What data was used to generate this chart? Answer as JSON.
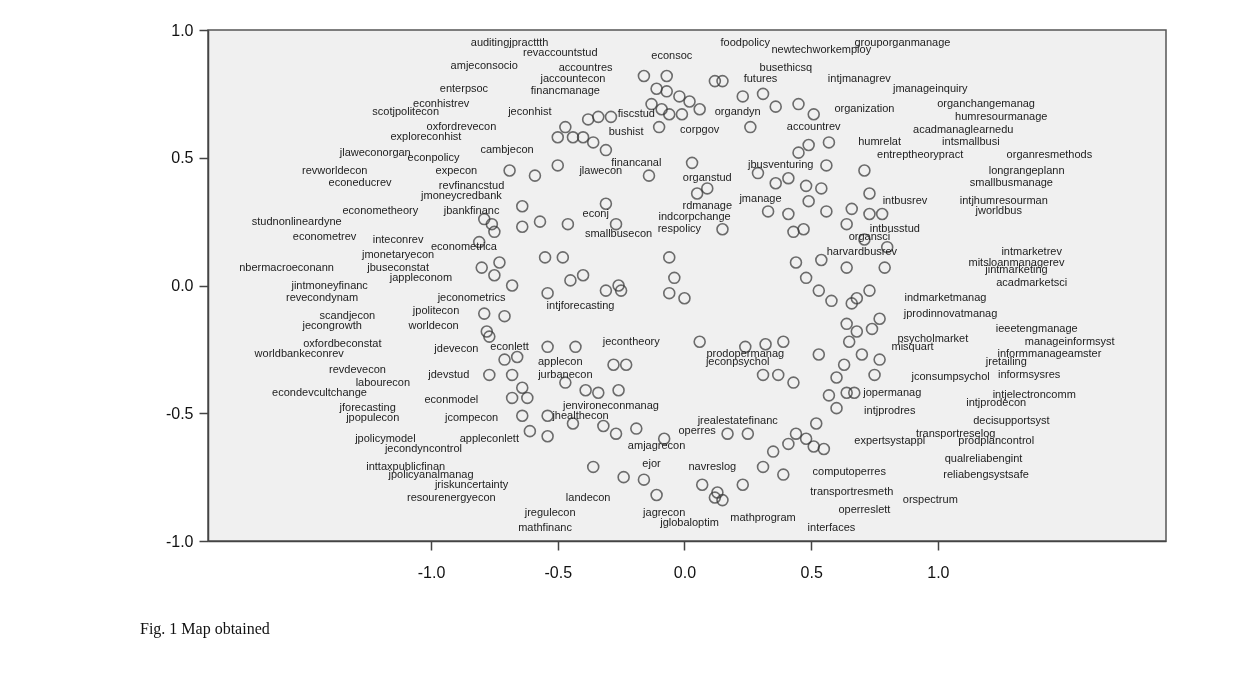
{
  "chart_data": {
    "type": "scatter",
    "series": [
      {
        "color": "#333333",
        "x": [
          -0.16,
          -0.07,
          0.12,
          0.15,
          -0.11,
          -0.07,
          -0.02,
          0.02,
          0.06,
          0.23,
          0.31,
          -0.13,
          -0.09,
          -0.06,
          -0.01,
          0.36,
          0.45,
          0.51,
          -0.34,
          -0.29,
          -0.38,
          -0.47,
          -0.5,
          -0.44,
          -0.4,
          -0.1,
          0.26,
          0.57,
          0.49,
          -0.36,
          -0.31,
          -0.5,
          -0.59,
          -0.14,
          0.03,
          0.29,
          0.45,
          0.56,
          0.36,
          0.41,
          0.48,
          0.54,
          -0.31,
          0.05,
          0.09,
          -0.64,
          -0.57,
          -0.64,
          0.33,
          0.41,
          0.49,
          0.56,
          -0.46,
          -0.27,
          0.15,
          0.43,
          0.47,
          -0.55,
          -0.48,
          -0.4,
          -0.45,
          -0.26,
          -0.06,
          -0.04,
          0.48,
          0.44,
          0.54,
          -0.69,
          -0.79,
          -0.76,
          -0.75,
          -0.8,
          -0.73,
          -0.75,
          -0.68,
          -0.81,
          0.71,
          0.73,
          0.66,
          0.73,
          0.78,
          0.64,
          0.71,
          0.8,
          0.64,
          0.79,
          -0.79,
          -0.71,
          -0.78,
          -0.77,
          -0.71,
          -0.66,
          -0.77,
          -0.68,
          -0.68,
          -0.54,
          -0.31,
          -0.25,
          -0.06,
          0.0,
          0.53,
          0.58,
          -0.54,
          -0.43,
          -0.28,
          -0.23,
          0.06,
          0.24,
          0.32,
          0.39,
          0.53,
          -0.47,
          -0.64,
          -0.62,
          -0.39,
          -0.34,
          -0.26,
          0.31,
          0.37,
          0.43,
          0.6,
          0.57,
          0.6,
          -0.64,
          -0.54,
          -0.44,
          -0.32,
          -0.27,
          -0.19,
          -0.61,
          -0.54,
          -0.08,
          0.17,
          0.25,
          0.44,
          0.52,
          0.48,
          0.55,
          0.51,
          0.41,
          -0.36,
          -0.24,
          -0.16,
          0.07,
          0.13,
          0.23,
          0.12,
          0.15,
          -0.11,
          0.31,
          0.39,
          0.35,
          0.73,
          0.68,
          0.66,
          0.77,
          0.74,
          0.64,
          0.68,
          0.65,
          0.7,
          0.77,
          0.63,
          0.75,
          0.64,
          0.67
        ],
        "values": [
          0.82,
          0.82,
          0.8,
          0.8,
          0.77,
          0.76,
          0.74,
          0.72,
          0.69,
          0.74,
          0.75,
          0.71,
          0.69,
          0.67,
          0.67,
          0.7,
          0.71,
          0.67,
          0.66,
          0.66,
          0.65,
          0.62,
          0.58,
          0.58,
          0.58,
          0.62,
          0.62,
          0.56,
          0.55,
          0.56,
          0.53,
          0.47,
          0.43,
          0.43,
          0.48,
          0.44,
          0.52,
          0.47,
          0.4,
          0.42,
          0.39,
          0.38,
          0.32,
          0.36,
          0.38,
          0.31,
          0.25,
          0.23,
          0.29,
          0.28,
          0.33,
          0.29,
          0.24,
          0.24,
          0.22,
          0.21,
          0.22,
          0.11,
          0.11,
          0.04,
          0.02,
          0.0,
          0.11,
          0.03,
          0.03,
          0.09,
          0.1,
          0.45,
          0.26,
          0.24,
          0.21,
          0.07,
          0.09,
          0.04,
          0.0,
          0.17,
          0.45,
          0.36,
          0.3,
          0.28,
          0.28,
          0.24,
          0.18,
          0.15,
          0.07,
          0.07,
          -0.11,
          -0.12,
          -0.18,
          -0.2,
          -0.29,
          -0.28,
          -0.35,
          -0.35,
          -0.44,
          -0.03,
          -0.02,
          -0.02,
          -0.03,
          -0.05,
          -0.02,
          -0.06,
          -0.24,
          -0.24,
          -0.31,
          -0.31,
          -0.22,
          -0.24,
          -0.23,
          -0.22,
          -0.27,
          -0.38,
          -0.4,
          -0.44,
          -0.41,
          -0.42,
          -0.41,
          -0.35,
          -0.35,
          -0.38,
          -0.36,
          -0.43,
          -0.48,
          -0.51,
          -0.51,
          -0.54,
          -0.55,
          -0.58,
          -0.56,
          -0.57,
          -0.59,
          -0.6,
          -0.58,
          -0.58,
          -0.58,
          -0.54,
          -0.6,
          -0.64,
          -0.63,
          -0.62,
          -0.71,
          -0.75,
          -0.76,
          -0.78,
          -0.81,
          -0.78,
          -0.83,
          -0.84,
          -0.82,
          -0.71,
          -0.74,
          -0.65,
          -0.02,
          -0.05,
          -0.07,
          -0.13,
          -0.17,
          -0.15,
          -0.18,
          -0.22,
          -0.27,
          -0.29,
          -0.31,
          -0.35,
          -0.42,
          -0.42
        ]
      }
    ],
    "marker": "circle",
    "xlim": [
      -1.88,
      1.9
    ],
    "ylim": [
      -1.0,
      1.0
    ],
    "xticks": [
      {
        "value": -1.0,
        "label": "-1.0"
      },
      {
        "value": -0.5,
        "label": "-0.5"
      },
      {
        "value": 0.0,
        "label": "0.0"
      },
      {
        "value": 0.5,
        "label": "0.5"
      },
      {
        "value": 1.0,
        "label": "1.0"
      }
    ],
    "yticks": [
      {
        "value": -1.0,
        "label": "-1.0"
      },
      {
        "value": -0.5,
        "label": "-0.5"
      },
      {
        "value": 0.0,
        "label": "0.0"
      },
      {
        "value": 0.5,
        "label": "0.5"
      },
      {
        "value": 1.0,
        "label": "1.0"
      }
    ],
    "annotations": [
      "auditingjpracttth",
      "revaccountstud",
      "econsoc",
      "foodpolicy",
      "newtechworkemploy",
      "grouporganmanage",
      "amjeconsocio",
      "accountres",
      "busethicsq",
      "jaccountecon",
      "futures",
      "intjmanagrev",
      "enterpsoc",
      "financmanage",
      "jmanageinquiry",
      "econhistrev",
      "scotjpolitecon",
      "jeconhist",
      "fiscstud",
      "organdyn",
      "organization",
      "organchangemanag",
      "humresourmanage",
      "oxfordrevecon",
      "exploreconhist",
      "bushist",
      "corpgov",
      "accountrev",
      "acadmanaglearnedu",
      "humrelat",
      "intsmallbusi",
      "jlaweconorgan",
      "cambjecon",
      "econpolicy",
      "financanal",
      "jbusventuring",
      "entreptheorypract",
      "organresmethods",
      "revworldecon",
      "expecon",
      "jlawecon",
      "organstud",
      "longrangeplann",
      "smallbusmanage",
      "econeducrev",
      "revfinancstud",
      "jmoneycredbank",
      "jmanage",
      "intbusrev",
      "intjhumresourman",
      "jworldbus",
      "econometheory",
      "jbankfinanc",
      "econj",
      "rdmanage",
      "indcorpchange",
      "studnonlineardyne",
      "intbusstud",
      "respolicy",
      "organsci",
      "econometrev",
      "inteconrev",
      "smallbusecon",
      "econometrica",
      "harvardbusrev",
      "intmarketrev",
      "mitsloanmanagerev",
      "jmonetaryecon",
      "jintmarketing",
      "nbermacroeconann",
      "jbuseconstat",
      "jappleconom",
      "acadmarketsci",
      "jintmoneyfinanc",
      "revecondynam",
      "jeconometrics",
      "intjforecasting",
      "indmarketmanag",
      "scandjecon",
      "jpolitecon",
      "jprodinnovatmanag",
      "jecongrowth",
      "worldecon",
      "ieeetengmanage",
      "psycholmarket",
      "manageinformsyst",
      "misquart",
      "oxfordbeconstat",
      "worldbankeconrev",
      "jdevecon",
      "econlett",
      "informmanageamster",
      "jretailing",
      "revdevecon",
      "jdevstud",
      "applecon",
      "jurbanecon",
      "prodopermanag",
      "jeconpsychol",
      "informsysres",
      "jconsumpsychol",
      "labourecon",
      "econdevcultchange",
      "econmodel",
      "jforecasting",
      "jpopulecon",
      "jcompecon",
      "jopermanag",
      "intjelectroncomm",
      "intjprodecon",
      "intjprodres",
      "decisupportsyst",
      "transportreselog",
      "expertsystappl",
      "prodplancontrol",
      "qualreliabengint",
      "reliabengsystsafe",
      "computoperres",
      "transportresmeth",
      "orspectrum",
      "operreslett",
      "interfaces",
      "mathprogram",
      "jagrecon",
      "jglobaloptim",
      "mathfinanc",
      "jregulecon",
      "landecon",
      "resourenergyecon",
      "jriskuncertainty",
      "jpolicyanalmanag",
      "inttaxpublicfinan",
      "jecondyncontrol",
      "jpolicymodel",
      "appleconlett",
      "jenvironeconmanag",
      "jhealthecon",
      "jrealestatefinanc",
      "operres",
      "amjagrecon",
      "navreslog",
      "ejor",
      "jecontheory",
      "Fig. 1  Map obtained"
    ]
  }
}
